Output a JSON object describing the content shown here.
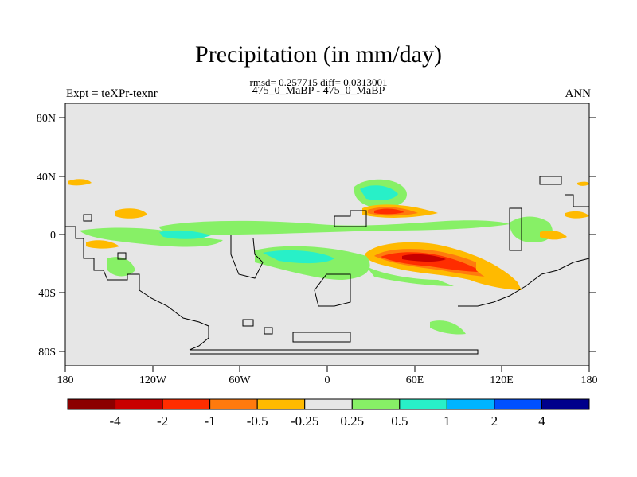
{
  "title": "Precipitation (in mm/day)",
  "stats": "rmsd= 0.257715 diff= 0.0313001",
  "case_label": "475_0_MaBP - 475_0_MaBP",
  "left_label": "Expt = teXPr-texnr",
  "right_label": "ANN",
  "x_ticks": [
    "180",
    "120W",
    "60W",
    "0",
    "60E",
    "120E",
    "180"
  ],
  "y_ticks": [
    "80N",
    "40N",
    "0",
    "40S",
    "80S"
  ],
  "colorbar": {
    "colors": [
      "#8b0000",
      "#c80000",
      "#ff2d00",
      "#ff7a0d",
      "#ffba00",
      "#e6e6e6",
      "#87f066",
      "#28f0c8",
      "#00b4ff",
      "#0050ff",
      "#00008b"
    ],
    "labels": [
      "-4",
      "-2",
      "-1",
      "-0.5",
      "-0.25",
      "0.25",
      "0.5",
      "1",
      "2",
      "4"
    ]
  },
  "map_background": "#e6e6e6"
}
